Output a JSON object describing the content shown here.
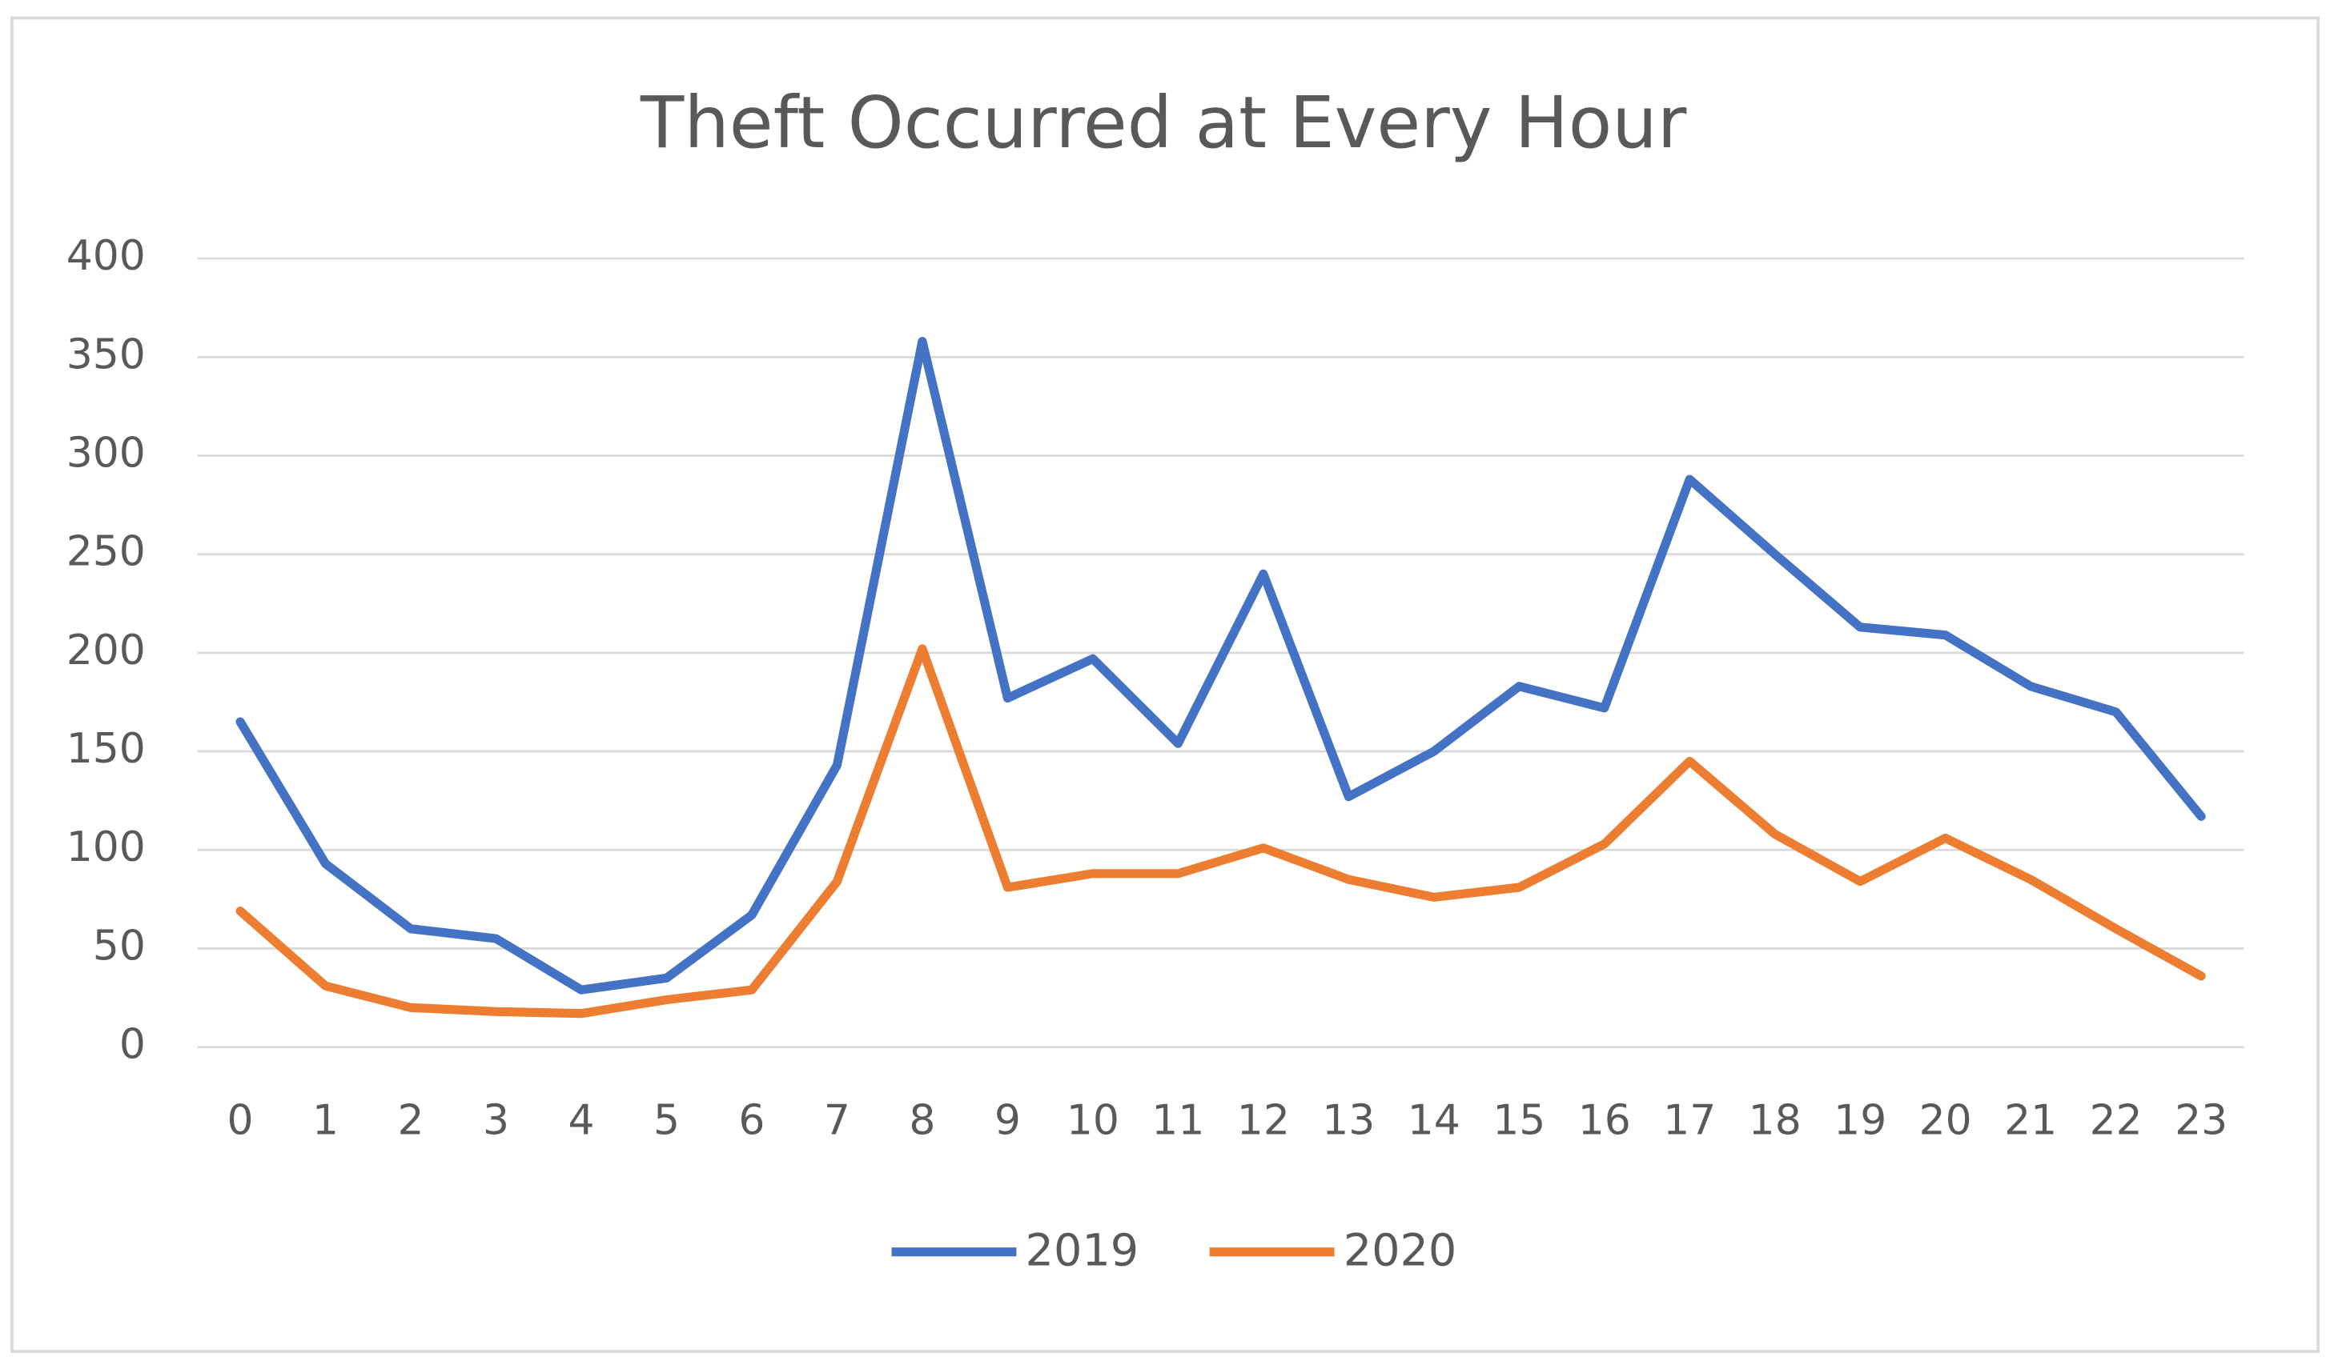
{
  "chart_data": {
    "type": "line",
    "title": "Theft Occurred at Every Hour",
    "categories": [
      "0",
      "1",
      "2",
      "3",
      "4",
      "5",
      "6",
      "7",
      "8",
      "9",
      "10",
      "11",
      "12",
      "13",
      "14",
      "15",
      "16",
      "17",
      "18",
      "19",
      "20",
      "21",
      "22",
      "23"
    ],
    "series": [
      {
        "name": "2019",
        "color": "#4472c4",
        "values": [
          165,
          93,
          60,
          55,
          29,
          35,
          67,
          143,
          358,
          177,
          197,
          154,
          240,
          127,
          150,
          183,
          172,
          288,
          250,
          213,
          209,
          183,
          170,
          117
        ]
      },
      {
        "name": "2020",
        "color": "#ed7d31",
        "values": [
          69,
          31,
          20,
          18,
          17,
          24,
          29,
          84,
          202,
          81,
          88,
          88,
          101,
          85,
          76,
          81,
          103,
          145,
          108,
          84,
          106,
          85,
          60,
          36
        ]
      }
    ],
    "ylim": [
      0,
      400
    ],
    "yticks": [
      0,
      50,
      100,
      150,
      200,
      250,
      300,
      350,
      400
    ],
    "grid": true,
    "legend": "bottom"
  }
}
